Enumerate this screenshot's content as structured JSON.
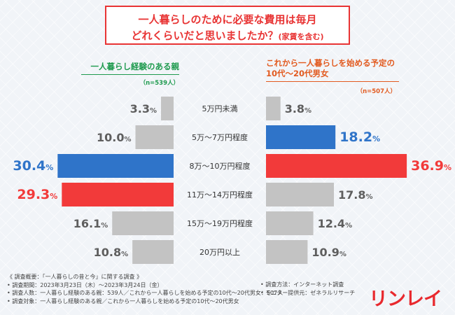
{
  "title": {
    "line1": "一人暮らしのために必要な費用は毎月",
    "line2": "どれくらいだと思いましたか？",
    "line2_note": "(家賃を含む)"
  },
  "legend": {
    "left_label": "一人暮らし経験のある親",
    "left_n": "（n=539人）",
    "right_label": "これから一人暮らしを始める予定の10代～20代男女",
    "right_n": "（n=507人）"
  },
  "chart_data": {
    "type": "bar",
    "orientation": "horizontal-butterfly",
    "title": "一人暮らしのために必要な費用は毎月どれくらいだと思いましたか？(家賃を含む)",
    "categories": [
      "5万円未満",
      "5万～7万円程度",
      "8万～10万円程度",
      "11万～14万円程度",
      "15万～19万円程度",
      "20万円以上"
    ],
    "unit": "%",
    "xlim": [
      0,
      40
    ],
    "series": [
      {
        "name": "一人暮らし経験のある親",
        "side": "left",
        "values": [
          3.3,
          10.0,
          30.4,
          29.3,
          16.1,
          10.8
        ],
        "labels": [
          [
            "3.3",
            "%"
          ],
          [
            "10.0",
            "%"
          ],
          [
            "30.4",
            "%"
          ],
          [
            "29.3",
            "%"
          ],
          [
            "16.1",
            "%"
          ],
          [
            "10.8",
            "%"
          ]
        ],
        "colors": [
          "#c3c3c3",
          "#c3c3c3",
          "#2f74c9",
          "#f23a3a",
          "#c3c3c3",
          "#c3c3c3"
        ],
        "label_colors": [
          "#5e5e5e",
          "#5e5e5e",
          "#2f74c9",
          "#f23a3a",
          "#5e5e5e",
          "#5e5e5e"
        ]
      },
      {
        "name": "これから一人暮らしを始める予定の10代～20代男女",
        "side": "right",
        "values": [
          3.8,
          18.2,
          36.9,
          17.8,
          12.4,
          10.9
        ],
        "labels": [
          [
            "3.8",
            "%"
          ],
          [
            "18.2",
            "%"
          ],
          [
            "36.9",
            "%"
          ],
          [
            "17.8",
            "%"
          ],
          [
            "12.4",
            "%"
          ],
          [
            "10.9",
            "%"
          ]
        ],
        "colors": [
          "#c3c3c3",
          "#2f74c9",
          "#f23a3a",
          "#c3c3c3",
          "#c3c3c3",
          "#c3c3c3"
        ],
        "label_colors": [
          "#5e5e5e",
          "#2f74c9",
          "#f23a3a",
          "#5e5e5e",
          "#5e5e5e",
          "#5e5e5e"
        ]
      }
    ]
  },
  "footer": {
    "lines": [
      "《 調査概要：「一人暮らしの昔と今」に関する調査 》",
      "• 調査期間：2023年3月23日（木）～2023年3月24日（金）",
      "• 調査人数：一人暮らし経験のある親：539人／これから一人暮らしを始める予定の10代～20代男女：507人",
      "• 調査対象：一人暮らし経験のある親／これから一人暮らしを始める予定の10代～20代男女"
    ],
    "right_lines": [
      "• 調査方法：インターネット調査",
      "• モニター提供元：ゼネラルリサーチ"
    ],
    "logo": "リンレイ"
  }
}
